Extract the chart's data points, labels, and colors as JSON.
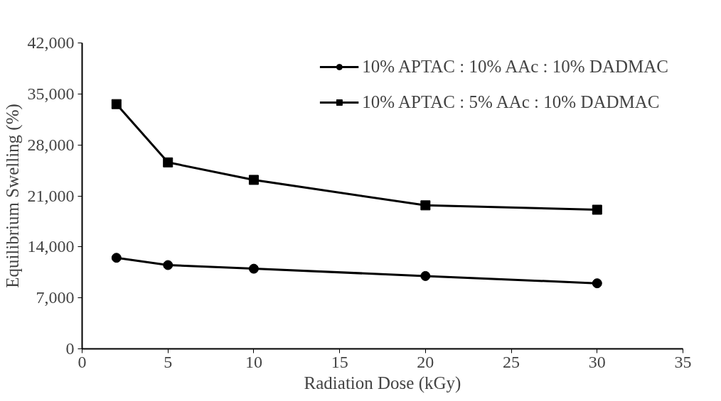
{
  "chart_data": {
    "type": "line",
    "xlabel": "Radiation Dose (kGy)",
    "ylabel": "Equilibrium Swelling (%)",
    "x": [
      2,
      5,
      10,
      20,
      30
    ],
    "series": [
      {
        "name": "10% APTAC : 10% AAc : 10% DADMAC",
        "color": "#000000",
        "marker": "circle",
        "values": [
          12500,
          11500,
          11000,
          10000,
          9000
        ]
      },
      {
        "name": "10% APTAC : 5% AAc : 10% DADMAC",
        "color": "#000000",
        "marker": "square",
        "values": [
          33600,
          25600,
          23200,
          19700,
          19100
        ]
      }
    ],
    "xlim": [
      0,
      35
    ],
    "xticks": [
      0,
      5,
      10,
      15,
      20,
      25,
      30,
      35
    ],
    "ylim": [
      0,
      42000
    ],
    "yticks": [
      {
        "value": 0,
        "label": "0"
      },
      {
        "value": 7000,
        "label": "7,000"
      },
      {
        "value": 14000,
        "label": "14,000"
      },
      {
        "value": 21000,
        "label": "21,000"
      },
      {
        "value": 28000,
        "label": "28,000"
      },
      {
        "value": 35000,
        "label": "35,000"
      },
      {
        "value": 42000,
        "label": "42,000"
      }
    ],
    "grid": false,
    "legend": "top right",
    "line_style": "solid"
  }
}
